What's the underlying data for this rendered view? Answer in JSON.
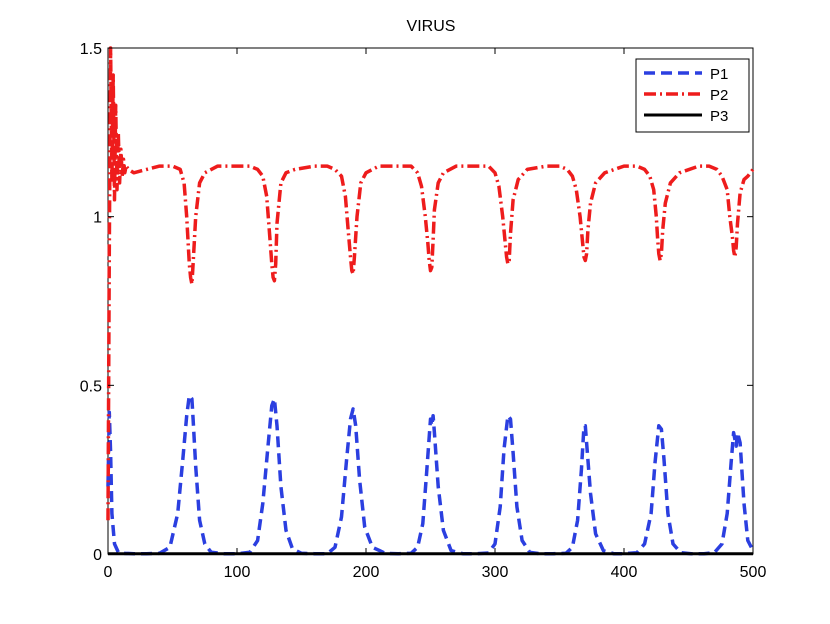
{
  "chart_data": {
    "type": "line",
    "title": "VIRUS",
    "xlabel": "",
    "ylabel": "",
    "xlim": [
      0,
      500
    ],
    "ylim": [
      0,
      1.5
    ],
    "x_ticks": [
      0,
      100,
      200,
      300,
      400,
      500
    ],
    "y_ticks": [
      0,
      0.5,
      1,
      1.5
    ],
    "x_tick_labels": [
      "0",
      "100",
      "200",
      "300",
      "400",
      "500"
    ],
    "y_tick_labels": [
      "0",
      "0.5",
      "1",
      "1.5"
    ],
    "grid": false,
    "legend_position": "top-right",
    "series": [
      {
        "name": "P1",
        "color": "#2b3fe0",
        "style": "dashed",
        "x": [
          0,
          1,
          2,
          3,
          5,
          8,
          12,
          20,
          30,
          40,
          48,
          54,
          58,
          61,
          63,
          65,
          66,
          68,
          71,
          75,
          80,
          90,
          100,
          110,
          116,
          120,
          124,
          127,
          129,
          131,
          134,
          138,
          143,
          150,
          160,
          170,
          176,
          181,
          185,
          188,
          190,
          192,
          195,
          199,
          205,
          215,
          225,
          235,
          240,
          244,
          247,
          250,
          251,
          252,
          253,
          256,
          260,
          266,
          275,
          285,
          295,
          300,
          304,
          307,
          310,
          312,
          314,
          317,
          321,
          327,
          335,
          345,
          355,
          360,
          364,
          367,
          369,
          370,
          371,
          374,
          378,
          384,
          392,
          400,
          410,
          416,
          421,
          424,
          427,
          429,
          431,
          434,
          438,
          444,
          452,
          462,
          470,
          476,
          480,
          483,
          485,
          487,
          488,
          490,
          493,
          496,
          500
        ],
        "y": [
          0.2,
          0.42,
          0.3,
          0.12,
          0.03,
          0.005,
          0.002,
          0.001,
          0.001,
          0.002,
          0.02,
          0.12,
          0.28,
          0.41,
          0.47,
          0.46,
          0.4,
          0.26,
          0.1,
          0.03,
          0.005,
          0.001,
          0.001,
          0.005,
          0.04,
          0.15,
          0.32,
          0.44,
          0.46,
          0.38,
          0.2,
          0.07,
          0.015,
          0.002,
          0.001,
          0.001,
          0.02,
          0.11,
          0.28,
          0.4,
          0.43,
          0.38,
          0.22,
          0.08,
          0.02,
          0.002,
          0.001,
          0.002,
          0.02,
          0.09,
          0.24,
          0.4,
          0.38,
          0.41,
          0.36,
          0.2,
          0.07,
          0.01,
          0.001,
          0.001,
          0.003,
          0.03,
          0.14,
          0.31,
          0.41,
          0.4,
          0.3,
          0.14,
          0.04,
          0.005,
          0.001,
          0.001,
          0.002,
          0.02,
          0.1,
          0.25,
          0.38,
          0.38,
          0.33,
          0.18,
          0.06,
          0.01,
          0.001,
          0.001,
          0.004,
          0.03,
          0.12,
          0.27,
          0.38,
          0.37,
          0.28,
          0.12,
          0.03,
          0.004,
          0.001,
          0.001,
          0.004,
          0.03,
          0.12,
          0.27,
          0.36,
          0.32,
          0.36,
          0.33,
          0.15,
          0.04,
          0.01
        ]
      },
      {
        "name": "P2",
        "color": "#ee1c1c",
        "style": "dash-dot",
        "x": [
          0,
          1,
          2,
          3,
          4,
          5,
          6,
          7,
          8,
          9,
          10,
          11,
          12,
          13,
          14,
          16,
          20,
          30,
          40,
          50,
          56,
          59,
          61,
          63,
          64,
          65,
          66,
          68,
          71,
          75,
          85,
          100,
          110,
          116,
          120,
          123,
          125,
          127,
          128,
          129,
          130,
          131,
          134,
          138,
          145,
          160,
          170,
          176,
          181,
          184,
          186,
          188,
          189,
          190,
          191,
          193,
          196,
          200,
          210,
          225,
          235,
          240,
          243,
          246,
          248,
          249,
          250,
          251,
          252,
          253,
          256,
          260,
          270,
          285,
          295,
          300,
          303,
          306,
          308,
          309,
          310,
          311,
          312,
          314,
          318,
          325,
          340,
          350,
          356,
          360,
          363,
          366,
          368,
          369,
          370,
          371,
          372,
          374,
          378,
          385,
          400,
          410,
          416,
          420,
          423,
          425,
          426,
          427,
          428,
          429,
          430,
          432,
          436,
          443,
          458,
          466,
          472,
          476,
          480,
          482,
          484,
          485,
          486,
          487,
          488,
          490,
          493,
          496,
          500
        ],
        "y": [
          0.1,
          0.9,
          1.5,
          1.1,
          1.42,
          1.05,
          1.33,
          1.08,
          1.25,
          1.1,
          1.2,
          1.12,
          1.17,
          1.13,
          1.15,
          1.14,
          1.13,
          1.14,
          1.15,
          1.15,
          1.14,
          1.1,
          1.0,
          0.86,
          0.82,
          0.8,
          0.86,
          1.0,
          1.1,
          1.13,
          1.15,
          1.15,
          1.15,
          1.14,
          1.12,
          1.06,
          0.96,
          0.86,
          0.82,
          0.81,
          0.86,
          0.98,
          1.1,
          1.13,
          1.14,
          1.15,
          1.15,
          1.14,
          1.12,
          1.06,
          0.97,
          0.88,
          0.84,
          0.83,
          0.88,
          1.0,
          1.1,
          1.13,
          1.15,
          1.15,
          1.15,
          1.13,
          1.09,
          1.0,
          0.92,
          0.87,
          0.84,
          0.85,
          0.93,
          1.02,
          1.1,
          1.13,
          1.15,
          1.15,
          1.15,
          1.13,
          1.09,
          1.0,
          0.92,
          0.88,
          0.86,
          0.87,
          0.95,
          1.05,
          1.11,
          1.14,
          1.15,
          1.15,
          1.14,
          1.12,
          1.08,
          1.0,
          0.92,
          0.88,
          0.87,
          0.89,
          0.96,
          1.04,
          1.1,
          1.13,
          1.15,
          1.15,
          1.14,
          1.12,
          1.08,
          1.0,
          0.94,
          0.89,
          0.87,
          0.89,
          0.96,
          1.04,
          1.1,
          1.13,
          1.15,
          1.15,
          1.14,
          1.12,
          1.08,
          1.0,
          0.94,
          0.9,
          0.88,
          0.91,
          0.98,
          1.07,
          1.11,
          1.12,
          1.14
        ]
      },
      {
        "name": "P3",
        "color": "#000000",
        "style": "solid",
        "x": [
          0,
          500
        ],
        "y": [
          0.001,
          0.001
        ]
      }
    ]
  }
}
